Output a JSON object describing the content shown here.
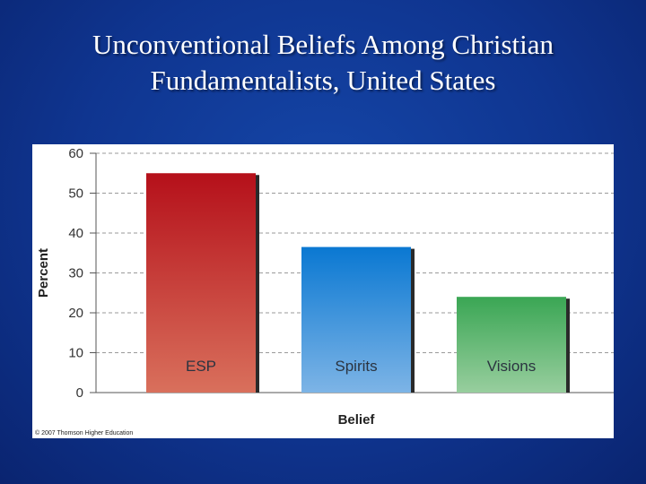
{
  "slide": {
    "title_line1": "Unconventional Beliefs Among Christian",
    "title_line2": "Fundamentalists, United States",
    "copyright": "© 2007 Thomson Higher Education"
  },
  "colors": {
    "background": "#0f3590",
    "bar_esp_top": "#b5101a",
    "bar_esp_bottom": "#d9705c",
    "bar_spirits_top": "#0a78d2",
    "bar_spirits_bottom": "#7db4e6",
    "bar_visions_top": "#3aa654",
    "bar_visions_bottom": "#98ce9e"
  },
  "chart_data": {
    "type": "bar",
    "title": "",
    "xlabel": "Belief",
    "ylabel": "Percent",
    "categories": [
      "ESP",
      "Spirits",
      "Visions"
    ],
    "values": [
      55,
      36.5,
      24
    ],
    "ylim": [
      0,
      60
    ],
    "yticks": [
      0,
      10,
      20,
      30,
      40,
      50,
      60
    ],
    "grid": true,
    "legend": "none",
    "category_labels_inside_bars": true
  }
}
